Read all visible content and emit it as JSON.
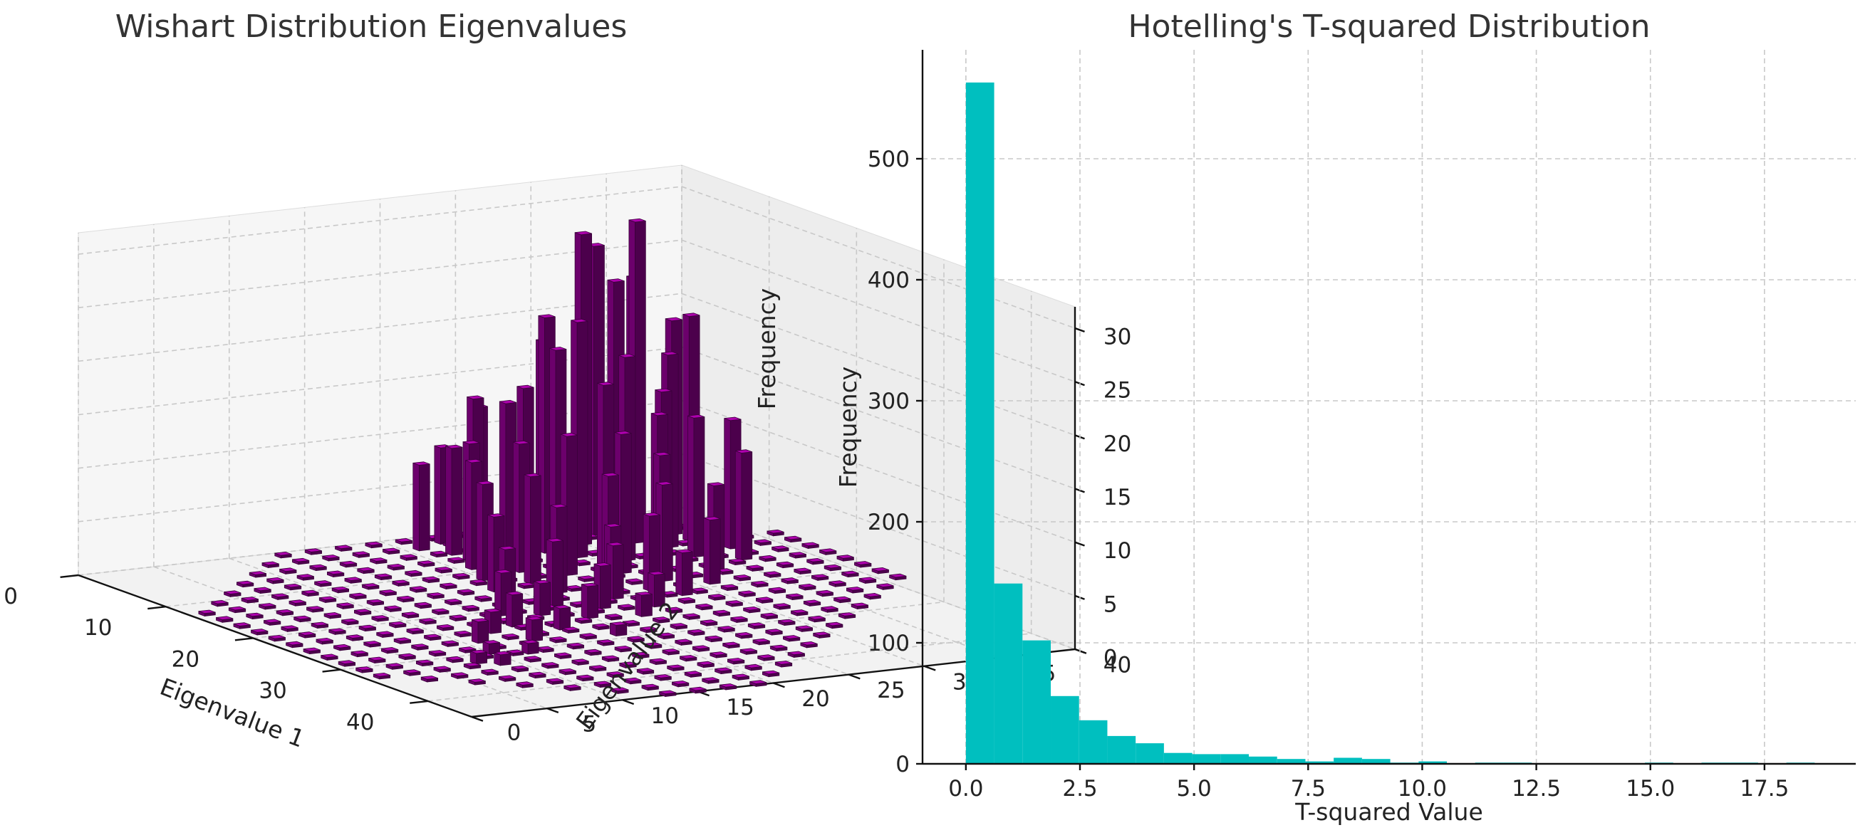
{
  "chart_data": [
    {
      "type": "bar3d",
      "title": "Wishart Distribution Eigenvalues",
      "xlabel": "Eigenvalue 1",
      "ylabel": "Eigenvalue 2",
      "zlabel": "Frequency",
      "xlim": [
        0,
        45
      ],
      "ylim": [
        0,
        40
      ],
      "zlim": [
        0,
        32
      ],
      "xticks": [
        "0",
        "10",
        "20",
        "30",
        "40"
      ],
      "yticks": [
        "0",
        "5",
        "10",
        "15",
        "20",
        "25",
        "30",
        "35",
        "40"
      ],
      "zticks": [
        "0",
        "5",
        "10",
        "15",
        "20",
        "25",
        "30"
      ],
      "bar_color": "#8b008b",
      "bar_width": 0.7,
      "bars": [
        {
          "x": 1,
          "y": 26,
          "z": 12
        },
        {
          "x": 2,
          "y": 23,
          "z": 9
        },
        {
          "x": 3,
          "y": 21,
          "z": 8
        },
        {
          "x": 3,
          "y": 30,
          "z": 17
        },
        {
          "x": 4,
          "y": 24,
          "z": 14
        },
        {
          "x": 4,
          "y": 32,
          "z": 27
        },
        {
          "x": 5,
          "y": 22,
          "z": 10
        },
        {
          "x": 5,
          "y": 34,
          "z": 24
        },
        {
          "x": 5,
          "y": 28,
          "z": 19
        },
        {
          "x": 6,
          "y": 30,
          "z": 29
        },
        {
          "x": 6,
          "y": 36,
          "z": 20
        },
        {
          "x": 6,
          "y": 25,
          "z": 14
        },
        {
          "x": 7,
          "y": 33,
          "z": 30
        },
        {
          "x": 7,
          "y": 27,
          "z": 22
        },
        {
          "x": 7,
          "y": 22,
          "z": 11
        },
        {
          "x": 8,
          "y": 31,
          "z": 25
        },
        {
          "x": 8,
          "y": 36,
          "z": 21
        },
        {
          "x": 8,
          "y": 25,
          "z": 16
        },
        {
          "x": 9,
          "y": 28,
          "z": 22
        },
        {
          "x": 9,
          "y": 34,
          "z": 18
        },
        {
          "x": 9,
          "y": 21,
          "z": 10
        },
        {
          "x": 10,
          "y": 33,
          "z": 15
        },
        {
          "x": 10,
          "y": 26,
          "z": 20
        },
        {
          "x": 11,
          "y": 30,
          "z": 19
        },
        {
          "x": 11,
          "y": 23,
          "z": 12
        },
        {
          "x": 11,
          "y": 37,
          "z": 12
        },
        {
          "x": 12,
          "y": 28,
          "z": 17
        },
        {
          "x": 12,
          "y": 34,
          "z": 13
        },
        {
          "x": 12,
          "y": 20,
          "z": 9
        },
        {
          "x": 13,
          "y": 31,
          "z": 14
        },
        {
          "x": 13,
          "y": 25,
          "z": 13
        },
        {
          "x": 14,
          "y": 22,
          "z": 10
        },
        {
          "x": 14,
          "y": 36,
          "z": 10
        },
        {
          "x": 14,
          "y": 28,
          "z": 13
        },
        {
          "x": 15,
          "y": 30,
          "z": 11
        },
        {
          "x": 15,
          "y": 19,
          "z": 7
        },
        {
          "x": 16,
          "y": 26,
          "z": 10
        },
        {
          "x": 16,
          "y": 33,
          "z": 8
        },
        {
          "x": 17,
          "y": 22,
          "z": 8
        },
        {
          "x": 17,
          "y": 29,
          "z": 9
        },
        {
          "x": 18,
          "y": 25,
          "z": 6
        },
        {
          "x": 18,
          "y": 18,
          "z": 5
        },
        {
          "x": 19,
          "y": 27,
          "z": 7
        },
        {
          "x": 19,
          "y": 31,
          "z": 6
        },
        {
          "x": 20,
          "y": 20,
          "z": 6
        },
        {
          "x": 20,
          "y": 24,
          "z": 5
        },
        {
          "x": 21,
          "y": 16,
          "z": 4
        },
        {
          "x": 21,
          "y": 28,
          "z": 4
        },
        {
          "x": 22,
          "y": 22,
          "z": 4
        },
        {
          "x": 22,
          "y": 18,
          "z": 3
        },
        {
          "x": 23,
          "y": 25,
          "z": 3
        },
        {
          "x": 24,
          "y": 15,
          "z": 3
        },
        {
          "x": 24,
          "y": 20,
          "z": 3
        },
        {
          "x": 25,
          "y": 13,
          "z": 2
        },
        {
          "x": 25,
          "y": 23,
          "z": 2
        },
        {
          "x": 26,
          "y": 17,
          "z": 2
        },
        {
          "x": 27,
          "y": 11,
          "z": 2
        },
        {
          "x": 28,
          "y": 14,
          "z": 2
        },
        {
          "x": 29,
          "y": 19,
          "z": 1
        },
        {
          "x": 30,
          "y": 10,
          "z": 1
        },
        {
          "x": 31,
          "y": 12,
          "z": 1
        },
        {
          "x": 32,
          "y": 8,
          "z": 1
        },
        {
          "x": 33,
          "y": 9,
          "z": 1
        }
      ]
    },
    {
      "type": "histogram",
      "title": "Hotelling's T-squared Distribution",
      "xlabel": "T-squared Value",
      "ylabel": "Frequency",
      "xlim": [
        -0.95,
        19.5
      ],
      "ylim": [
        0,
        590
      ],
      "xticks": [
        0,
        2.5,
        5,
        7.5,
        10,
        12.5,
        15,
        17.5
      ],
      "xtick_labels": [
        "0.0",
        "2.5",
        "5.0",
        "7.5",
        "10.0",
        "12.5",
        "15.0",
        "17.5"
      ],
      "yticks": [
        0,
        100,
        200,
        300,
        400,
        500
      ],
      "ytick_labels": [
        "0",
        "100",
        "200",
        "300",
        "400",
        "500"
      ],
      "bar_color": "#00bfbf",
      "bin_start": 0,
      "bin_width": 0.62,
      "counts": [
        563,
        149,
        102,
        56,
        36,
        23,
        17,
        9,
        8,
        8,
        6,
        4,
        2,
        5,
        4,
        1,
        2,
        0,
        1,
        1,
        0,
        0,
        0,
        0,
        1,
        0,
        1,
        1,
        0,
        1
      ]
    }
  ]
}
